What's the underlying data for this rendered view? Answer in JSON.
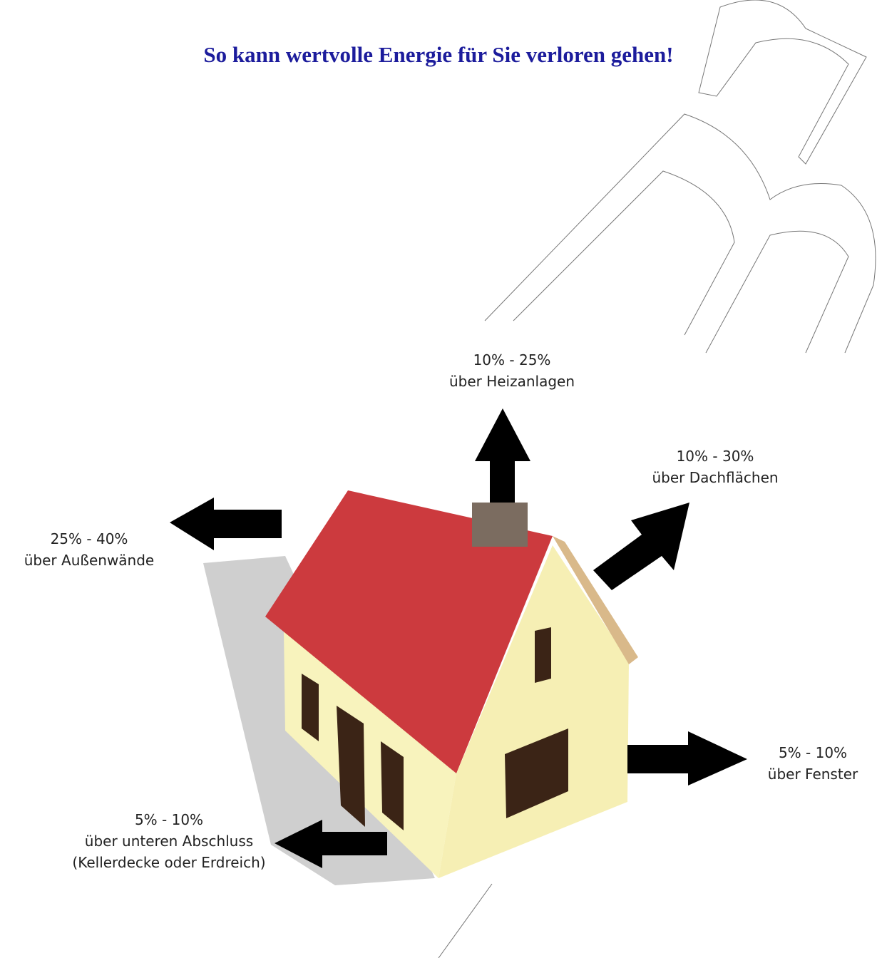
{
  "title": "So kann wertvolle Energie für Sie verloren gehen!",
  "labels": [
    {
      "lines": [
        "10% - 25%",
        "über Heizanlagen"
      ]
    },
    {
      "lines": [
        "10% - 30%",
        "über Dachflächen"
      ]
    },
    {
      "lines": [
        "25% - 40%",
        "über Außenwände"
      ]
    },
    {
      "lines": [
        "5% - 10%",
        "über Fenster"
      ]
    },
    {
      "lines": [
        "5% - 10%",
        "über unteren Abschluss",
        "(Kellerdecke oder Erdreich)"
      ]
    }
  ]
}
